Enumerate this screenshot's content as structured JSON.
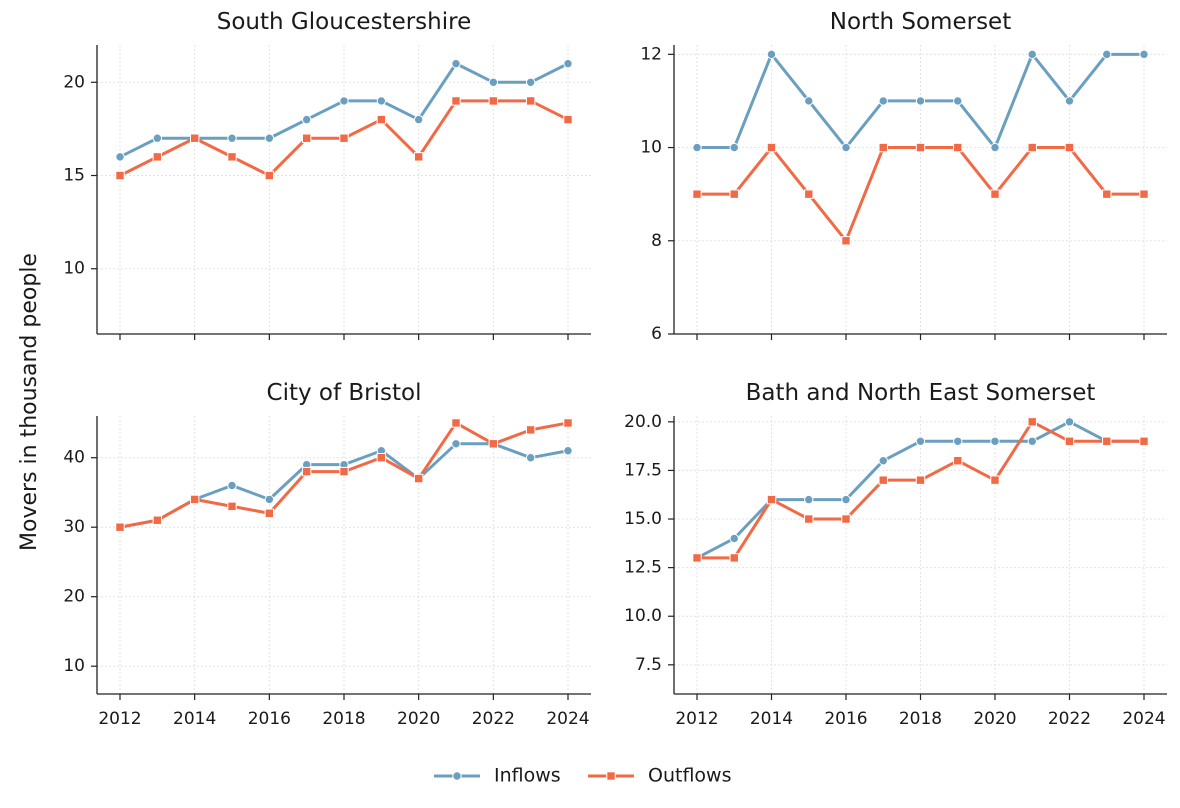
{
  "figure": {
    "ylabel": "Movers in thousand people",
    "legend": {
      "placement": "bottom-center",
      "items": [
        {
          "label": "Inflows",
          "color": "#6a9fc0",
          "marker": "circle"
        },
        {
          "label": "Outflows",
          "color": "#f26a45",
          "marker": "square"
        }
      ]
    }
  },
  "chart_data": [
    {
      "type": "line",
      "title": "South Gloucestershire",
      "x": [
        2012,
        2013,
        2014,
        2015,
        2016,
        2017,
        2018,
        2019,
        2020,
        2021,
        2022,
        2023,
        2024
      ],
      "xticks": [
        2012,
        2014,
        2016,
        2018,
        2020,
        2022,
        2024
      ],
      "ylim": [
        6.5,
        22
      ],
      "yticks": [
        10,
        15,
        20
      ],
      "ytick_labels": [
        "10",
        "15",
        "20"
      ],
      "show_xtick_labels": false,
      "series": [
        {
          "name": "Inflows",
          "values": [
            16,
            17,
            17,
            17,
            17,
            18,
            19,
            19,
            18,
            21,
            20,
            20,
            21
          ]
        },
        {
          "name": "Outflows",
          "values": [
            15,
            16,
            17,
            16,
            15,
            17,
            17,
            18,
            16,
            19,
            19,
            19,
            18
          ]
        }
      ]
    },
    {
      "type": "line",
      "title": "North Somerset",
      "x": [
        2012,
        2013,
        2014,
        2015,
        2016,
        2017,
        2018,
        2019,
        2020,
        2021,
        2022,
        2023,
        2024
      ],
      "xticks": [
        2012,
        2014,
        2016,
        2018,
        2020,
        2022,
        2024
      ],
      "ylim": [
        6,
        12.2
      ],
      "yticks": [
        6,
        8,
        10,
        12
      ],
      "ytick_labels": [
        "6",
        "8",
        "10",
        "12"
      ],
      "show_xtick_labels": false,
      "series": [
        {
          "name": "Inflows",
          "values": [
            10,
            10,
            12,
            11,
            10,
            11,
            11,
            11,
            10,
            12,
            11,
            12,
            12
          ]
        },
        {
          "name": "Outflows",
          "values": [
            9,
            9,
            10,
            9,
            8,
            10,
            10,
            10,
            9,
            10,
            10,
            9,
            9
          ]
        }
      ]
    },
    {
      "type": "line",
      "title": "City of Bristol",
      "x": [
        2012,
        2013,
        2014,
        2015,
        2016,
        2017,
        2018,
        2019,
        2020,
        2021,
        2022,
        2023,
        2024
      ],
      "xticks": [
        2012,
        2014,
        2016,
        2018,
        2020,
        2022,
        2024
      ],
      "ylim": [
        6,
        46
      ],
      "yticks": [
        10,
        20,
        30,
        40
      ],
      "ytick_labels": [
        "10",
        "20",
        "30",
        "40"
      ],
      "show_xtick_labels": true,
      "series": [
        {
          "name": "Inflows",
          "values": [
            30,
            31,
            34,
            36,
            34,
            39,
            39,
            41,
            37,
            42,
            42,
            40,
            41
          ]
        },
        {
          "name": "Outflows",
          "values": [
            30,
            31,
            34,
            33,
            32,
            38,
            38,
            40,
            37,
            45,
            42,
            44,
            45
          ]
        }
      ]
    },
    {
      "type": "line",
      "title": "Bath and North East Somerset",
      "x": [
        2012,
        2013,
        2014,
        2015,
        2016,
        2017,
        2018,
        2019,
        2020,
        2021,
        2022,
        2023,
        2024
      ],
      "xticks": [
        2012,
        2014,
        2016,
        2018,
        2020,
        2022,
        2024
      ],
      "ylim": [
        6.0,
        20.3
      ],
      "yticks": [
        7.5,
        10.0,
        12.5,
        15.0,
        17.5,
        20.0
      ],
      "ytick_labels": [
        "7.5",
        "10.0",
        "12.5",
        "15.0",
        "17.5",
        "20.0"
      ],
      "show_xtick_labels": true,
      "series": [
        {
          "name": "Inflows",
          "values": [
            13,
            14,
            16,
            16,
            16,
            18,
            19,
            19,
            19,
            19,
            20,
            19,
            19
          ]
        },
        {
          "name": "Outflows",
          "values": [
            13,
            13,
            16,
            15,
            15,
            17,
            17,
            18,
            17,
            20,
            19,
            19,
            19
          ]
        }
      ]
    }
  ]
}
